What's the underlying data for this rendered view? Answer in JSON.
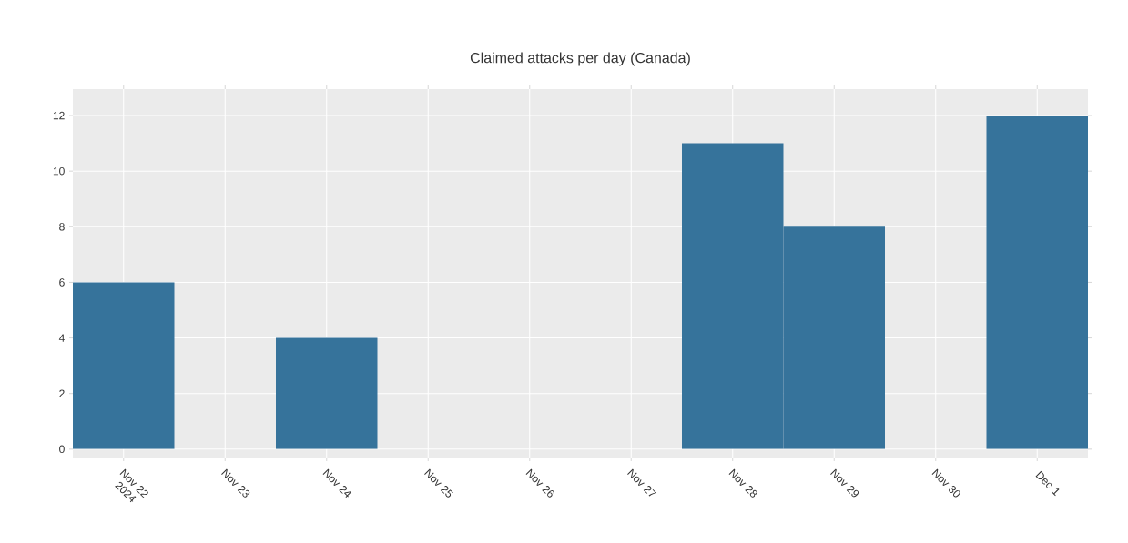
{
  "chart_data": {
    "type": "bar",
    "title": "Claimed attacks per day (Canada)",
    "categories": [
      "Nov 22 2024",
      "Nov 23",
      "Nov 24",
      "Nov 25",
      "Nov 26",
      "Nov 27",
      "Nov 28",
      "Nov 29",
      "Nov 30",
      "Dec 1"
    ],
    "values": [
      6,
      0,
      4,
      0,
      0,
      0,
      11,
      8,
      0,
      12
    ],
    "color": "#36739b",
    "ylim": [
      -0.3,
      12.95
    ],
    "yticks": [
      0,
      2,
      4,
      6,
      8,
      10,
      12
    ],
    "grid": true
  }
}
